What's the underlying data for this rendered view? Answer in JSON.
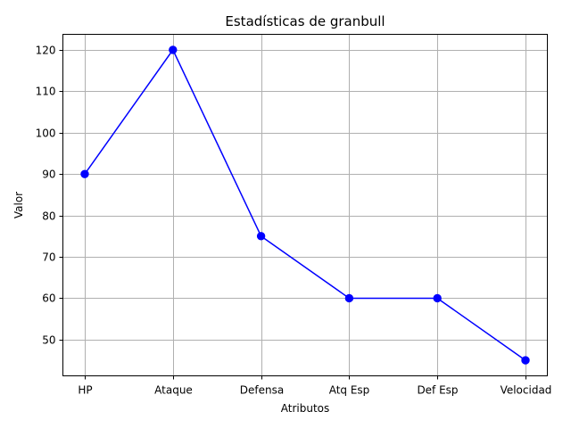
{
  "chart_data": {
    "type": "line",
    "title": "Estadísticas de granbull",
    "xlabel": "Atributos",
    "ylabel": "Valor",
    "categories": [
      "HP",
      "Ataque",
      "Defensa",
      "Atq Esp",
      "Def Esp",
      "Velocidad"
    ],
    "series": [
      {
        "values": [
          90,
          120,
          75,
          60,
          60,
          45
        ],
        "color": "#0000ff",
        "marker": "circle"
      }
    ],
    "yticks": [
      50,
      60,
      70,
      80,
      90,
      100,
      110,
      120
    ],
    "ylim": [
      41.25,
      123.75
    ],
    "grid": true
  }
}
